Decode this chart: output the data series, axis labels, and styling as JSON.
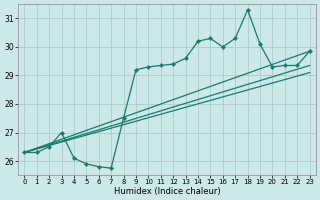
{
  "xlabel": "Humidex (Indice chaleur)",
  "background_color": "#cce8e8",
  "grid_color": "#b0d0d0",
  "line_color": "#1a7a6e",
  "xlim": [
    -0.5,
    23.5
  ],
  "ylim": [
    25.5,
    31.5
  ],
  "xticks": [
    0,
    1,
    2,
    3,
    4,
    5,
    6,
    7,
    8,
    9,
    10,
    11,
    12,
    13,
    14,
    15,
    16,
    17,
    18,
    19,
    20,
    21,
    22,
    23
  ],
  "yticks": [
    26,
    27,
    28,
    29,
    30,
    31
  ],
  "main_x": [
    0,
    1,
    2,
    3,
    4,
    5,
    6,
    7,
    8,
    9,
    10,
    11,
    12,
    13,
    14,
    15,
    16,
    17,
    18,
    19,
    20,
    21,
    22,
    23
  ],
  "main_y": [
    26.3,
    26.3,
    26.5,
    27.0,
    26.1,
    25.9,
    25.8,
    25.75,
    27.5,
    29.2,
    29.3,
    29.35,
    29.4,
    29.6,
    30.2,
    30.3,
    30.0,
    30.3,
    31.3,
    30.1,
    29.3,
    29.35,
    29.35,
    29.85
  ],
  "trend_lines": [
    {
      "x": [
        0,
        23
      ],
      "y": [
        26.3,
        29.85
      ]
    },
    {
      "x": [
        0,
        23
      ],
      "y": [
        26.3,
        29.35
      ]
    },
    {
      "x": [
        0,
        23
      ],
      "y": [
        26.3,
        29.1
      ]
    }
  ]
}
